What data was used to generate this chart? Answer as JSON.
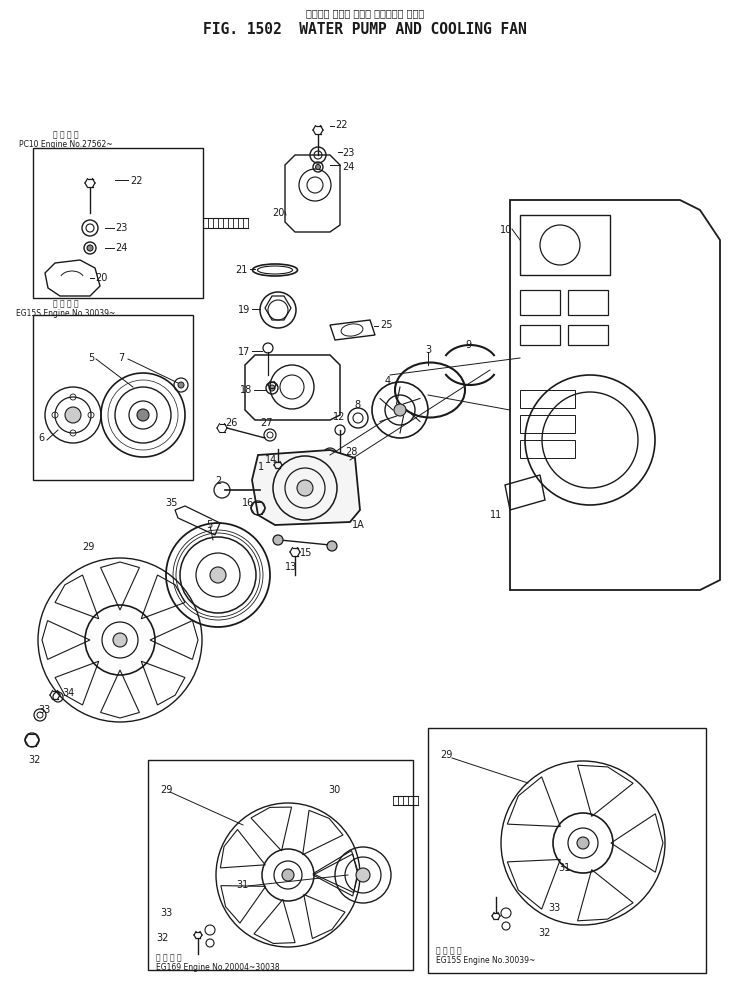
{
  "title_japanese": "ウォータ ホンプ およܿ クーリング ファン",
  "title_english": "FIG. 1502  WATER PUMP AND COOLING FAN",
  "bg_color": "#ffffff",
  "line_color": "#1a1a1a",
  "fig_width": 7.3,
  "fig_height": 10.01,
  "dpi": 100,
  "box1_label1": "備 用 号 題",
  "box1_label2": "PC10 Engine No.27562~",
  "box2_label1": "備 用 号 題",
  "box2_label2": "EG15S Engine No.30039~",
  "box3_label1": "備 用 号 題",
  "box3_label2": "EG169 Engine No.20004~30038",
  "box4_label1": "備 用 号 題",
  "box4_label2": "EG15S Engine No.30039~"
}
